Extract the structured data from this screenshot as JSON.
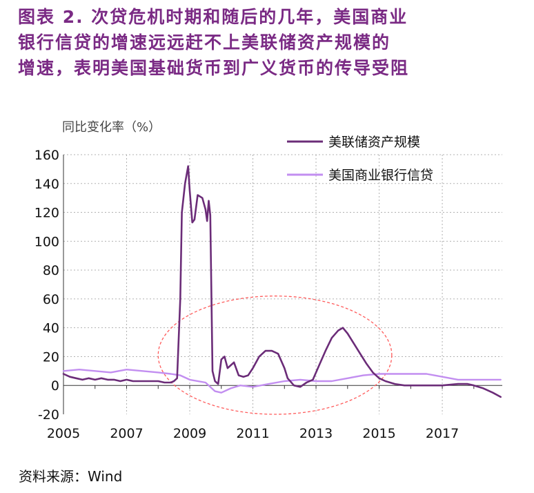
{
  "title_lines": [
    "图表  2. 次贷危机时期和随后的几年，美国商业",
    "银行信贷的增速远远赶不上美联储资产规模的",
    "增速，表明美国基础货币到广义货币的传导受阻"
  ],
  "source": "资料来源：Wind",
  "colors": {
    "title": "#7a2a84",
    "fed": "#6b2c78",
    "bank": "#c28ef0",
    "ellipse": "#ff5a5a",
    "grid": "#b0b0b0"
  },
  "chart_data": {
    "type": "line",
    "ylabel": "同比变化率（%）",
    "xlabel": "",
    "xlim": [
      2005.0,
      2018.9
    ],
    "ylim": [
      -20,
      160
    ],
    "yticks": [
      -20,
      0,
      20,
      40,
      60,
      80,
      100,
      120,
      140,
      160
    ],
    "xticks": [
      "2005",
      "2007",
      "2009",
      "2011",
      "2013",
      "2015",
      "2017"
    ],
    "grid": true,
    "legend_position": "top-right",
    "series": [
      {
        "name": "美联储资产规模",
        "color": "#6b2c78",
        "x": [
          2005.0,
          2005.2,
          2005.4,
          2005.6,
          2005.8,
          2006.0,
          2006.2,
          2006.4,
          2006.6,
          2006.8,
          2007.0,
          2007.2,
          2007.4,
          2007.6,
          2007.8,
          2008.0,
          2008.2,
          2008.4,
          2008.5,
          2008.6,
          2008.7,
          2008.75,
          2008.85,
          2008.95,
          2009.0,
          2009.08,
          2009.15,
          2009.25,
          2009.4,
          2009.5,
          2009.55,
          2009.6,
          2009.65,
          2009.72,
          2009.8,
          2009.9,
          2010.0,
          2010.1,
          2010.2,
          2010.3,
          2010.4,
          2010.55,
          2010.7,
          2010.85,
          2011.0,
          2011.2,
          2011.4,
          2011.6,
          2011.8,
          2012.0,
          2012.1,
          2012.3,
          2012.5,
          2012.7,
          2012.9,
          2013.1,
          2013.3,
          2013.5,
          2013.7,
          2013.85,
          2014.0,
          2014.2,
          2014.4,
          2014.6,
          2014.8,
          2015.0,
          2015.2,
          2015.5,
          2015.8,
          2016.0,
          2016.5,
          2017.0,
          2017.5,
          2017.8,
          2018.0,
          2018.3,
          2018.6,
          2018.85
        ],
        "y": [
          8,
          6,
          5,
          4,
          5,
          4,
          5,
          4,
          4,
          3,
          4,
          3,
          3,
          3,
          3,
          3,
          2,
          2,
          3,
          5,
          60,
          120,
          140,
          152,
          135,
          113,
          115,
          132,
          130,
          122,
          114,
          128,
          118,
          10,
          3,
          1,
          18,
          20,
          12,
          14,
          16,
          7,
          6,
          7,
          12,
          20,
          24,
          24,
          22,
          12,
          5,
          0,
          -1,
          2,
          4,
          14,
          24,
          33,
          38,
          40,
          36,
          29,
          22,
          15,
          9,
          5,
          3,
          1,
          0,
          0,
          0,
          0,
          1,
          1,
          0,
          -2,
          -5,
          -8
        ]
      },
      {
        "name": "美国商业银行信贷",
        "color": "#c28ef0",
        "x": [
          2005.0,
          2005.5,
          2006.0,
          2006.5,
          2007.0,
          2007.5,
          2008.0,
          2008.4,
          2008.7,
          2009.0,
          2009.5,
          2009.8,
          2010.0,
          2010.3,
          2010.6,
          2011.0,
          2011.5,
          2012.0,
          2012.5,
          2013.0,
          2013.5,
          2014.0,
          2014.5,
          2015.0,
          2015.5,
          2016.0,
          2016.5,
          2017.0,
          2017.5,
          2018.0,
          2018.5,
          2018.85
        ],
        "y": [
          10,
          11,
          10,
          9,
          11,
          10,
          9,
          8,
          7,
          4,
          2,
          -4,
          -5,
          -2,
          0,
          -1,
          1,
          3,
          4,
          3,
          3,
          5,
          7,
          8,
          8,
          8,
          8,
          6,
          4,
          4,
          4,
          4
        ]
      }
    ],
    "annotations": [
      {
        "type": "dashed-ellipse",
        "x_range": [
          2008.0,
          2015.4
        ],
        "y_range": [
          -20,
          62
        ]
      }
    ]
  }
}
